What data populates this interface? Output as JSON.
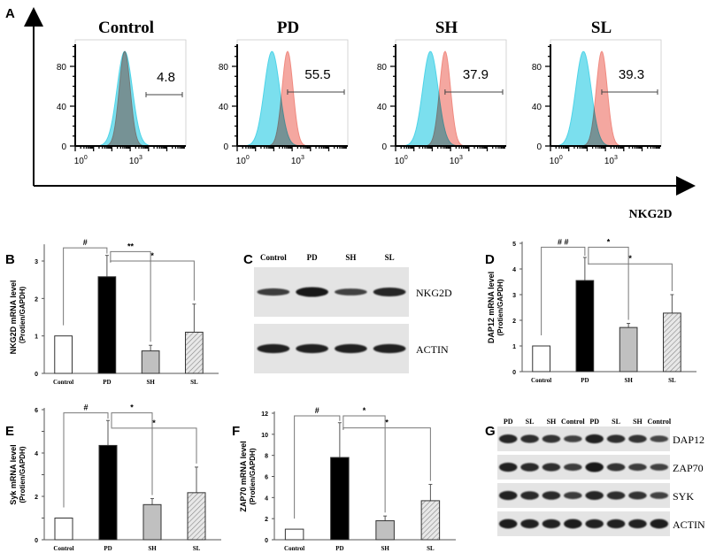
{
  "panel_letters": [
    "A",
    "B",
    "C",
    "D",
    "E",
    "F",
    "G"
  ],
  "colors": {
    "isotype": "#4fd4e8",
    "sample": "#f08a80",
    "overlap": "#6b9aa8",
    "sh_bar": "#c0c0c0"
  },
  "flow": {
    "x_axis_label": "NKG2D",
    "y_ticks": [
      "0",
      "40",
      "80"
    ],
    "x_ticks": [
      {
        "base": "10",
        "exp": "0",
        "log": 0
      },
      {
        "base": "10",
        "exp": "3",
        "log": 3
      }
    ],
    "panels": [
      {
        "title": "Control",
        "gate_value": "4.8",
        "isotype_peak_log": 2.3,
        "sample_peak_log": 2.3
      },
      {
        "title": "PD",
        "gate_value": "55.5",
        "isotype_peak_log": 1.5,
        "sample_peak_log": 2.35
      },
      {
        "title": "SH",
        "gate_value": "37.9",
        "isotype_peak_log": 1.5,
        "sample_peak_log": 2.3
      },
      {
        "title": "SL",
        "gate_value": "39.3",
        "isotype_peak_log": 1.4,
        "sample_peak_log": 2.4
      }
    ]
  },
  "chart_data": [
    {
      "panel": "B",
      "type": "bar",
      "categories": [
        "Control",
        "PD",
        "SH",
        "SL"
      ],
      "values": [
        1.0,
        2.58,
        0.6,
        1.1
      ],
      "errors": [
        0,
        0.57,
        0.15,
        0.75
      ],
      "ylabel": "NKG2D mRNA level",
      "ylabel2": "（Protien/GAPDH)",
      "ylim": [
        0,
        3.4
      ],
      "yticks": [
        "0",
        "1",
        "2",
        "3"
      ],
      "brackets": [
        {
          "from": 0,
          "to": 1,
          "label": "#",
          "level": 3.35
        },
        {
          "from": 1,
          "to": 2,
          "label": "**",
          "level": 3.25
        },
        {
          "from": 1,
          "to": 3,
          "label": "*",
          "level": 3.0
        }
      ]
    },
    {
      "panel": "D",
      "type": "bar",
      "categories": [
        "Control",
        "PD",
        "SH",
        "SL"
      ],
      "values": [
        1.0,
        3.55,
        1.72,
        2.28
      ],
      "errors": [
        0,
        0.9,
        0.16,
        0.72
      ],
      "ylabel": "DAP12 mRNA level",
      "ylabel2": "(Protien/GAPDH)",
      "ylim": [
        0,
        5
      ],
      "yticks": [
        "0",
        "1",
        "2",
        "3",
        "4",
        "5"
      ],
      "brackets": [
        {
          "from": 0,
          "to": 1,
          "label": "# #",
          "level": 4.85
        },
        {
          "from": 1,
          "to": 2,
          "label": "*",
          "level": 4.85
        },
        {
          "from": 1,
          "to": 3,
          "label": "*",
          "level": 4.2
        }
      ]
    },
    {
      "panel": "E",
      "type": "bar",
      "categories": [
        "Control",
        "PD",
        "SH",
        "SL"
      ],
      "values": [
        1.0,
        4.35,
        1.62,
        2.17
      ],
      "errors": [
        0,
        1.15,
        0.28,
        1.18
      ],
      "ylabel": "Syk mRNA level",
      "ylabel2": "(Protien/GAPDH)",
      "ylim": [
        0,
        6
      ],
      "yticks": [
        "0",
        "",
        "2",
        "",
        "4",
        "",
        "6"
      ],
      "brackets": [
        {
          "from": 0,
          "to": 1,
          "label": "#",
          "level": 5.85
        },
        {
          "from": 1,
          "to": 2,
          "label": "*",
          "level": 5.85
        },
        {
          "from": 1,
          "to": 3,
          "label": "*",
          "level": 5.15
        }
      ]
    },
    {
      "panel": "F",
      "type": "bar",
      "categories": [
        "Control",
        "PD",
        "SH",
        "SL"
      ],
      "values": [
        1.0,
        7.8,
        1.8,
        3.7
      ],
      "errors": [
        0,
        3.3,
        0.45,
        1.55
      ],
      "ylabel": "ZAP70 mRNA level",
      "ylabel2": "(Protien/GAPDH)",
      "ylim": [
        0,
        12
      ],
      "yticks": [
        "0",
        "2",
        "4",
        "6",
        "8",
        "10",
        "12"
      ],
      "brackets": [
        {
          "from": 0,
          "to": 1,
          "label": "#",
          "level": 11.75
        },
        {
          "from": 1,
          "to": 2,
          "label": "*",
          "level": 11.75
        },
        {
          "from": 1,
          "to": 3,
          "label": "*",
          "level": 10.6
        }
      ]
    }
  ],
  "blot_c": {
    "lanes": [
      "Control",
      "PD",
      "SH",
      "SL"
    ],
    "rows": [
      {
        "label": "NKG2D",
        "intensity": [
          0.6,
          1.0,
          0.55,
          0.85
        ]
      },
      {
        "label": "ACTIN",
        "intensity": [
          0.9,
          0.9,
          0.9,
          0.9
        ]
      }
    ]
  },
  "blot_g": {
    "lanes": [
      "PD",
      "SL",
      "SH",
      "Control",
      "PD",
      "SL",
      "SH",
      "Control"
    ],
    "rows": [
      {
        "label": "DAP12",
        "intensity": [
          0.85,
          0.75,
          0.7,
          0.55,
          0.9,
          0.75,
          0.7,
          0.5
        ]
      },
      {
        "label": "ZAP70",
        "intensity": [
          0.9,
          0.8,
          0.75,
          0.6,
          1.0,
          0.7,
          0.6,
          0.55
        ]
      },
      {
        "label": "SYK",
        "intensity": [
          0.9,
          0.8,
          0.8,
          0.6,
          0.85,
          0.75,
          0.7,
          0.55
        ]
      },
      {
        "label": "ACTIN",
        "intensity": [
          0.95,
          0.9,
          0.9,
          0.95,
          0.9,
          0.9,
          0.9,
          0.95
        ]
      }
    ]
  }
}
